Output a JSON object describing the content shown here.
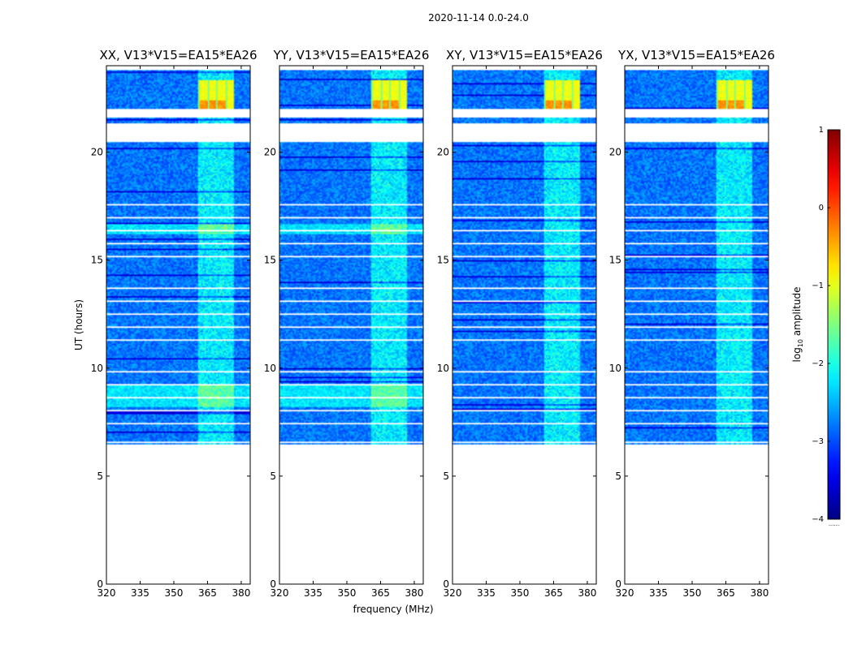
{
  "suptitle": "2020-11-14 0.0-24.0",
  "colorbar": {
    "label_main": "log",
    "label_sub": "10",
    "label_tail": " amplitude",
    "ticks": [
      1,
      0,
      -1,
      -2,
      -3,
      -4
    ],
    "tick_labels": [
      "1",
      "0",
      "−1",
      "−2",
      "−3",
      "−4"
    ],
    "range": [
      -4,
      1
    ],
    "footer": "......"
  },
  "chart_data": [
    {
      "type": "heatmap",
      "title": "XX, V13*V15=EA15*EA26",
      "xlabel": "",
      "ylabel": "UT (hours)",
      "xlim": [
        320,
        384
      ],
      "ylim": [
        0,
        24
      ],
      "x_ticks": [
        320,
        335,
        350,
        365,
        380
      ],
      "y_ticks": [
        0,
        5,
        10,
        15,
        20
      ],
      "bright_band_MHz": [
        361,
        377
      ],
      "strong_block_hours": [
        22.0,
        23.3
      ]
    },
    {
      "type": "heatmap",
      "title": "YY, V13*V15=EA15*EA26",
      "xlabel": "frequency (MHz)",
      "ylabel": "",
      "xlim": [
        320,
        384
      ],
      "ylim": [
        0,
        24
      ],
      "x_ticks": [
        320,
        335,
        350,
        365,
        380
      ],
      "y_ticks": [
        0,
        5,
        10,
        15,
        20
      ],
      "bright_band_MHz": [
        361,
        377
      ],
      "strong_block_hours": [
        22.0,
        23.3
      ]
    },
    {
      "type": "heatmap",
      "title": "XY, V13*V15=EA15*EA26",
      "xlabel": "",
      "ylabel": "",
      "xlim": [
        320,
        384
      ],
      "ylim": [
        0,
        24
      ],
      "x_ticks": [
        320,
        335,
        350,
        365,
        380
      ],
      "y_ticks": [
        0,
        5,
        10,
        15,
        20
      ],
      "bright_band_MHz": [
        361,
        377
      ],
      "strong_block_hours": [
        22.0,
        23.3
      ]
    },
    {
      "type": "heatmap",
      "title": "YX, V13*V15=EA15*EA26",
      "xlabel": "",
      "ylabel": "",
      "xlim": [
        320,
        384
      ],
      "ylim": [
        0,
        24
      ],
      "x_ticks": [
        320,
        335,
        350,
        365,
        380
      ],
      "y_ticks": [
        0,
        5,
        10,
        15,
        20
      ],
      "bright_band_MHz": [
        361,
        377
      ],
      "strong_block_hours": [
        22.0,
        23.3
      ]
    }
  ],
  "data_coverage_hours": [
    6.3,
    23.8
  ],
  "gap_hours": [
    [
      6.3,
      6.45
    ],
    [
      20.5,
      21.3
    ],
    [
      21.6,
      22.0
    ]
  ]
}
